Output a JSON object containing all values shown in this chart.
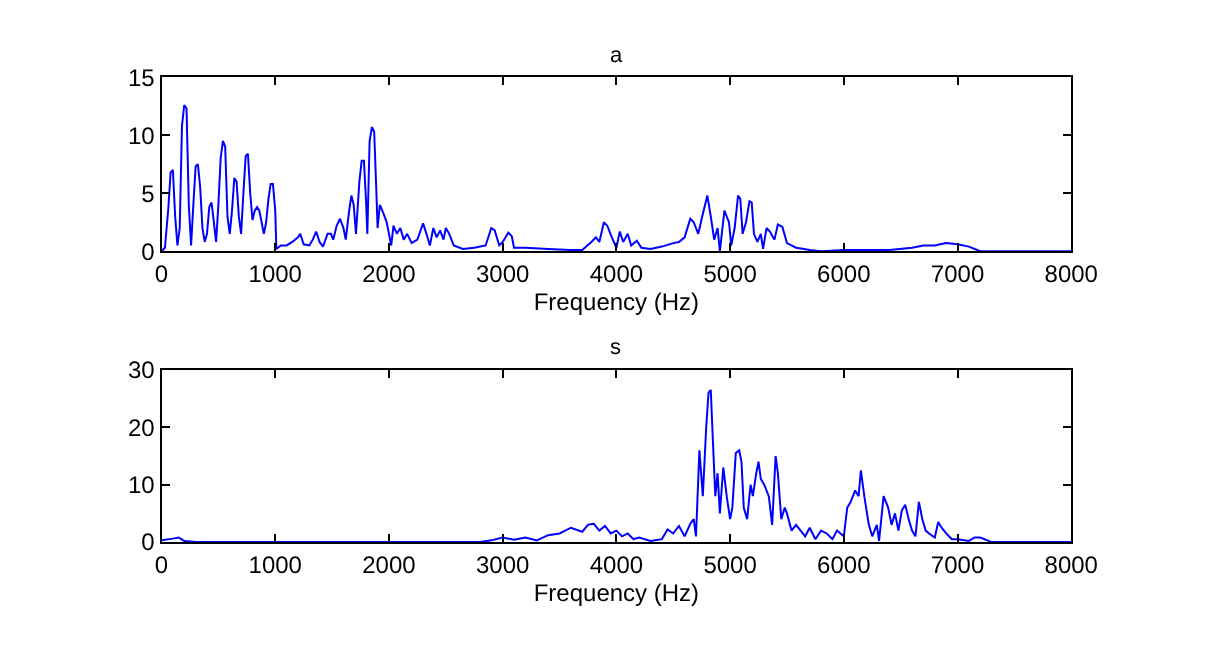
{
  "chart_data": [
    {
      "type": "line",
      "title": "a",
      "xlabel": "Frequency (Hz)",
      "xlim": [
        0,
        8000
      ],
      "xticks": [
        0,
        1000,
        2000,
        3000,
        4000,
        5000,
        6000,
        7000,
        8000
      ],
      "ylim": [
        0,
        15
      ],
      "yticks": [
        0,
        5,
        10,
        15
      ],
      "marker": "none",
      "line_style": "solid",
      "series": [
        {
          "color": "#0000ff",
          "x": [
            0,
            30,
            60,
            80,
            100,
            120,
            140,
            160,
            180,
            200,
            220,
            240,
            260,
            280,
            300,
            320,
            340,
            360,
            380,
            400,
            420,
            440,
            460,
            480,
            500,
            520,
            540,
            560,
            580,
            600,
            620,
            640,
            660,
            680,
            700,
            720,
            740,
            760,
            780,
            800,
            820,
            840,
            860,
            880,
            900,
            920,
            940,
            960,
            980,
            1000,
            1010,
            1050,
            1100,
            1150,
            1200,
            1220,
            1250,
            1300,
            1330,
            1360,
            1390,
            1420,
            1460,
            1490,
            1510,
            1540,
            1570,
            1600,
            1620,
            1650,
            1670,
            1690,
            1710,
            1740,
            1760,
            1780,
            1800,
            1810,
            1830,
            1850,
            1870,
            1890,
            1900,
            1920,
            1950,
            1980,
            2000,
            2020,
            2040,
            2070,
            2100,
            2130,
            2160,
            2200,
            2250,
            2300,
            2330,
            2360,
            2390,
            2420,
            2450,
            2480,
            2500,
            2530,
            2570,
            2650,
            2750,
            2850,
            2900,
            2930,
            2970,
            3000,
            3050,
            3080,
            3100,
            3200,
            3400,
            3600,
            3700,
            3780,
            3820,
            3850,
            3890,
            3920,
            3960,
            4000,
            4030,
            4060,
            4100,
            4130,
            4180,
            4220,
            4300,
            4400,
            4500,
            4550,
            4600,
            4650,
            4680,
            4720,
            4760,
            4800,
            4830,
            4860,
            4890,
            4910,
            4950,
            4990,
            5010,
            5040,
            5070,
            5090,
            5110,
            5140,
            5170,
            5190,
            5210,
            5240,
            5270,
            5290,
            5320,
            5350,
            5390,
            5420,
            5460,
            5500,
            5580,
            5650,
            5700,
            5800,
            6000,
            6200,
            6400,
            6600,
            6700,
            6800,
            6900,
            7000,
            7100,
            7200,
            8000
          ],
          "values": [
            0,
            0.3,
            3.7,
            6.8,
            7,
            3,
            0.5,
            2,
            10.8,
            12.6,
            12.3,
            4,
            0.5,
            4,
            7.3,
            7.5,
            5.5,
            2,
            0.8,
            1.5,
            3.8,
            4.2,
            2.5,
            0.8,
            4,
            8,
            9.5,
            9,
            3,
            1.5,
            3.5,
            6.3,
            6,
            3,
            1.5,
            5,
            8.2,
            8.4,
            5,
            2.7,
            3.5,
            3.8,
            3.5,
            2.5,
            1.5,
            2.5,
            4.5,
            5.8,
            5.8,
            3.5,
            0.2,
            0.5,
            0.5,
            0.8,
            1.2,
            1.5,
            0.6,
            0.5,
            1,
            1.7,
            0.8,
            0.4,
            1.5,
            1.5,
            1,
            2.2,
            2.8,
            2,
            1,
            3.5,
            4.8,
            4,
            1.5,
            6,
            7.8,
            7.8,
            4,
            1.5,
            9.5,
            10.7,
            10.3,
            5,
            2,
            4,
            3.3,
            2.5,
            1.5,
            0.5,
            2.2,
            1.5,
            2,
            1,
            1.5,
            0.7,
            1,
            2.4,
            1.5,
            0.5,
            2,
            1.2,
            1.8,
            1,
            2,
            1.5,
            0.5,
            0.2,
            0.3,
            0.5,
            2,
            1.8,
            0.5,
            0.8,
            1.6,
            1.3,
            0.3,
            0.3,
            0.2,
            0.1,
            0.1,
            0.8,
            1.2,
            0.8,
            2.5,
            2.2,
            1.2,
            0.3,
            1.7,
            0.8,
            1.5,
            0.5,
            0.9,
            0.3,
            0.2,
            0.4,
            0.7,
            0.8,
            1.2,
            2.8,
            2.5,
            1.5,
            3.2,
            4.8,
            3,
            1,
            2,
            0,
            3.5,
            2.5,
            0.5,
            2,
            4.8,
            4.5,
            1.5,
            2.5,
            4.3,
            4.2,
            1.5,
            0.8,
            1.5,
            0.2,
            2,
            1.7,
            1,
            2.3,
            2.1,
            0.7,
            0.3,
            0.2,
            0.1,
            0,
            0.1,
            0.1,
            0.1,
            0.3,
            0.5,
            0.5,
            0.7,
            0.6,
            0.4,
            0,
            0
          ]
        }
      ]
    },
    {
      "type": "line",
      "title": "s",
      "xlabel": "Frequency (Hz)",
      "xlim": [
        0,
        8000
      ],
      "xticks": [
        0,
        1000,
        2000,
        3000,
        4000,
        5000,
        6000,
        7000,
        8000
      ],
      "ylim": [
        0,
        30
      ],
      "yticks": [
        0,
        10,
        20,
        30
      ],
      "marker": "none",
      "line_style": "solid",
      "series": [
        {
          "color": "#0000ff",
          "x": [
            0,
            100,
            150,
            200,
            300,
            2800,
            2900,
            3000,
            3100,
            3200,
            3300,
            3400,
            3500,
            3600,
            3700,
            3750,
            3800,
            3850,
            3900,
            3950,
            4000,
            4050,
            4100,
            4150,
            4200,
            4300,
            4400,
            4450,
            4500,
            4550,
            4600,
            4650,
            4680,
            4700,
            4730,
            4760,
            4790,
            4810,
            4830,
            4850,
            4870,
            4890,
            4910,
            4940,
            4970,
            5000,
            5020,
            5050,
            5080,
            5100,
            5120,
            5150,
            5180,
            5200,
            5230,
            5250,
            5270,
            5300,
            5340,
            5370,
            5400,
            5420,
            5450,
            5480,
            5500,
            5540,
            5580,
            5620,
            5660,
            5700,
            5750,
            5800,
            5850,
            5900,
            5940,
            6000,
            6030,
            6060,
            6100,
            6130,
            6150,
            6180,
            6220,
            6250,
            6290,
            6310,
            6350,
            6390,
            6420,
            6450,
            6480,
            6510,
            6540,
            6570,
            6600,
            6630,
            6660,
            6690,
            6720,
            6750,
            6800,
            6830,
            6860,
            6900,
            6950,
            7000,
            7100,
            7150,
            7200,
            7300,
            8000
          ],
          "values": [
            0.3,
            0.6,
            0.8,
            0.2,
            0,
            0,
            0.3,
            0.8,
            0.4,
            0.8,
            0.3,
            1.2,
            1.5,
            2.5,
            1.8,
            3,
            3.2,
            2,
            2.8,
            1.5,
            2,
            1,
            1.5,
            0.5,
            0.8,
            0.2,
            0.5,
            2.2,
            1.5,
            2.8,
            1,
            3.2,
            4,
            1,
            16,
            8,
            20,
            26,
            26.5,
            17,
            8,
            12,
            5,
            13,
            8,
            4,
            6,
            15.5,
            16,
            14,
            6,
            4,
            10,
            8,
            12,
            14,
            11,
            10,
            8,
            3,
            15,
            12,
            4,
            6,
            5,
            2,
            3,
            2,
            1,
            2.5,
            0.5,
            2,
            1.5,
            0.5,
            2,
            1,
            6,
            7,
            9,
            8,
            12.5,
            8,
            3,
            1,
            3,
            0.2,
            8,
            6,
            3,
            5,
            2,
            5.5,
            6.5,
            4,
            2,
            1,
            7,
            4,
            2,
            1.5,
            0.8,
            3.5,
            2.5,
            1.5,
            0.5,
            0.5,
            0.2,
            0.8,
            0.8,
            0,
            0
          ]
        }
      ]
    }
  ]
}
